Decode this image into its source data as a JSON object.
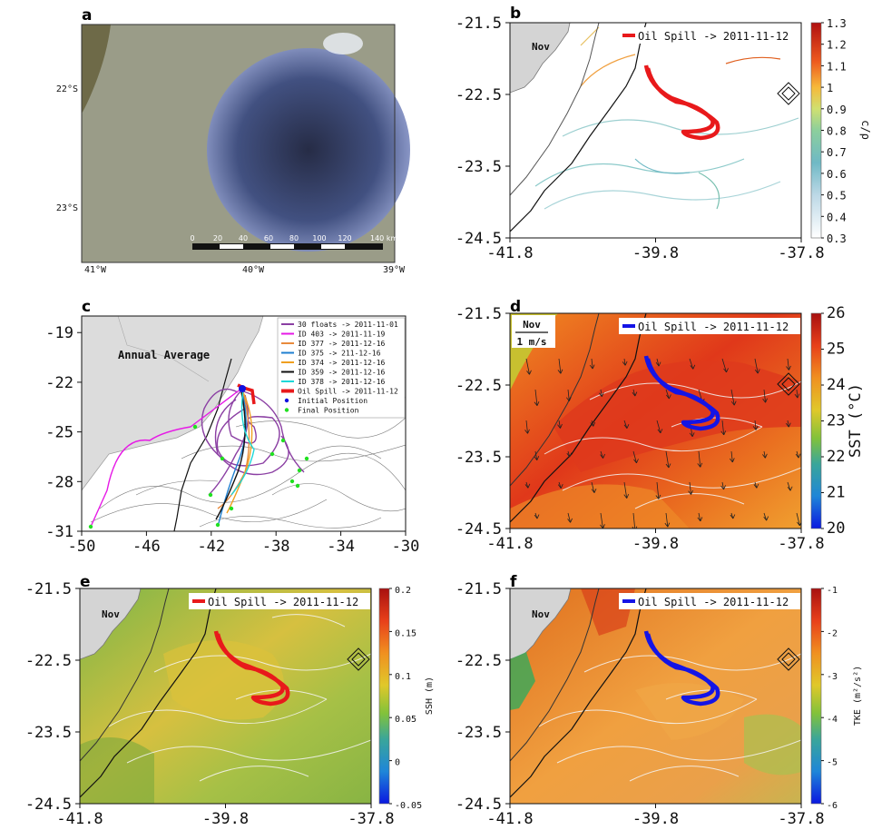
{
  "panels": {
    "a": {
      "label": "a",
      "lat_ticks": [
        "22°S",
        "23°S"
      ],
      "lon_ticks": [
        "41°W",
        "40°W",
        "39°W"
      ],
      "scalebar": [
        "0",
        "20",
        "40",
        "60",
        "80",
        "100",
        "120",
        "140 km"
      ]
    },
    "b": {
      "label": "b",
      "month": "Nov",
      "legend": "Oil Spill -> 2011-11-12",
      "cbar_label": "c/ρ",
      "cbar_ticks": [
        "1.3",
        "1.2",
        "1.1",
        "1",
        "0.9",
        "0.8",
        "0.7",
        "0.6",
        "0.5",
        "0.4",
        "0.3"
      ]
    },
    "c": {
      "label": "c",
      "title": "Annual Average"
    },
    "d": {
      "label": "d",
      "month": "Nov",
      "vector_scale": "1 m/s",
      "legend": "Oil Spill -> 2011-11-12",
      "cbar_label": "SST (°C)",
      "cbar_ticks": [
        "26",
        "25",
        "24",
        "23",
        "22",
        "21",
        "20"
      ]
    },
    "e": {
      "label": "e",
      "month": "Nov",
      "legend": "Oil Spill -> 2011-11-12",
      "cbar_label": "SSH (m)",
      "cbar_ticks": [
        "0.2",
        "0.15",
        "0.1",
        "0.05",
        "0",
        "-0.05"
      ]
    },
    "f": {
      "label": "f",
      "month": "Nov",
      "legend": "Oil Spill -> 2011-11-12",
      "cbar_label": "TKE (m²/s²)",
      "cbar_ticks": [
        "-1",
        "-2",
        "-3",
        "-4",
        "-5",
        "-6"
      ]
    }
  },
  "colors": {
    "oil_spill_red": "#e8191b",
    "oil_spill_blue": "#1414e6",
    "floats": "#8b3fa3",
    "id403": "#e619e6",
    "id377": "#e88a3c",
    "id375": "#1f7fd0",
    "id374": "#f0a020",
    "id359": "#111111",
    "id378": "#1ed8d8",
    "initial": "#1010e0",
    "final": "#20e020"
  },
  "chart_data": [
    {
      "type": "line",
      "panel": "b",
      "title": "",
      "xlabel": "",
      "ylabel": "",
      "xlim": [
        -41.8,
        -37.8
      ],
      "ylim": [
        -24.5,
        -21.5
      ],
      "x_ticks": [
        "-41.8",
        "-39.8",
        "-37.8"
      ],
      "y_ticks": [
        "-21.5",
        "-22.5",
        "-23.5",
        "-24.5"
      ],
      "series": [
        {
          "name": "Oil Spill -> 2011-11-12",
          "color": "#e8191b"
        }
      ],
      "colorbar": {
        "label": "c/ρ",
        "range": [
          0.3,
          1.3
        ]
      }
    },
    {
      "type": "line",
      "panel": "c",
      "title": "Annual Average",
      "xlim": [
        -50,
        -30
      ],
      "ylim": [
        -31,
        -18
      ],
      "x_ticks": [
        "-50",
        "-46",
        "-42",
        "-38",
        "-34",
        "-30"
      ],
      "y_ticks": [
        "-19",
        "-22",
        "-25",
        "-28",
        "-31"
      ],
      "legend_placement": "top-right",
      "series": [
        {
          "name": "30 floats -> 2011-11-01",
          "color": "#8b3fa3"
        },
        {
          "name": "ID 403 -> 2011-11-19",
          "color": "#e619e6"
        },
        {
          "name": "ID 377 -> 2011-12-16",
          "color": "#e88a3c"
        },
        {
          "name": "ID 375 -> 211-12-16",
          "color": "#1f7fd0"
        },
        {
          "name": "ID 374 -> 2011-12-16",
          "color": "#f0a020"
        },
        {
          "name": "ID 359 -> 2011-12-16",
          "color": "#111111"
        },
        {
          "name": "ID 378 -> 2011-12-16",
          "color": "#1ed8d8"
        },
        {
          "name": "Oil Spill -> 2011-11-12",
          "color": "#e8191b"
        },
        {
          "name": "Initial Position",
          "color": "#1010e0"
        },
        {
          "name": "Final Position",
          "color": "#20e020"
        }
      ]
    },
    {
      "type": "heatmap",
      "panel": "d",
      "xlim": [
        -41.8,
        -37.8
      ],
      "ylim": [
        -24.5,
        -21.5
      ],
      "x_ticks": [
        "-41.8",
        "-39.8",
        "-37.8"
      ],
      "y_ticks": [
        "-21.5",
        "-22.5",
        "-23.5",
        "-24.5"
      ],
      "series": [
        {
          "name": "Oil Spill -> 2011-11-12",
          "color": "#1414e6"
        }
      ],
      "colorbar": {
        "label": "SST (°C)",
        "range": [
          20,
          26
        ]
      }
    },
    {
      "type": "heatmap",
      "panel": "e",
      "xlim": [
        -41.8,
        -37.8
      ],
      "ylim": [
        -24.5,
        -21.5
      ],
      "x_ticks": [
        "-41.8",
        "-39.8",
        "-37.8"
      ],
      "y_ticks": [
        "-21.5",
        "-22.5",
        "-23.5",
        "-24.5"
      ],
      "series": [
        {
          "name": "Oil Spill -> 2011-11-12",
          "color": "#e8191b"
        }
      ],
      "colorbar": {
        "label": "SSH (m)",
        "range": [
          -0.05,
          0.2
        ]
      }
    },
    {
      "type": "heatmap",
      "panel": "f",
      "xlim": [
        -41.8,
        -37.8
      ],
      "ylim": [
        -24.5,
        -21.5
      ],
      "x_ticks": [
        "-41.8",
        "-39.8",
        "-37.8"
      ],
      "y_ticks": [
        "-21.5",
        "-22.5",
        "-23.5",
        "-24.5"
      ],
      "series": [
        {
          "name": "Oil Spill -> 2011-11-12",
          "color": "#1414e6"
        }
      ],
      "colorbar": {
        "label": "TKE (m²/s²)",
        "range": [
          -6,
          -1
        ]
      }
    }
  ]
}
